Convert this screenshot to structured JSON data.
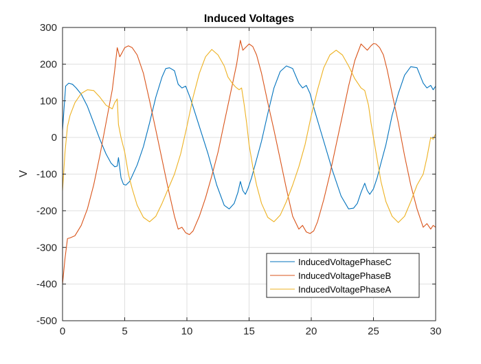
{
  "chart_data": {
    "type": "line",
    "title": "Induced Voltages",
    "xlabel": "",
    "ylabel": "V",
    "xlim": [
      0,
      30
    ],
    "ylim": [
      -500,
      300
    ],
    "xticks": [
      0,
      5,
      10,
      15,
      20,
      25,
      30
    ],
    "yticks": [
      -500,
      -400,
      -300,
      -200,
      -100,
      0,
      100,
      200,
      300
    ],
    "xtick_labels": [
      "0",
      "5",
      "10",
      "15",
      "20",
      "25",
      "30"
    ],
    "ytick_labels": [
      "-500",
      "-400",
      "-300",
      "-200",
      "-100",
      "0",
      "100",
      "200",
      "300"
    ],
    "grid": true,
    "legend_position": "bottom-right",
    "series": [
      {
        "name": "InducedVoltagePhaseC",
        "color": "#0072bd",
        "x": [
          0,
          0.25,
          0.5,
          0.8,
          1.1,
          1.5,
          2,
          2.5,
          3,
          3.5,
          3.9,
          4.2,
          4.4,
          4.5,
          4.7,
          4.9,
          5.1,
          5.4,
          6,
          6.5,
          7,
          7.5,
          8,
          8.3,
          8.6,
          9,
          9.3,
          9.6,
          9.9,
          10.3,
          11,
          11.7,
          12.4,
          13,
          13.4,
          13.8,
          14.1,
          14.3,
          14.5,
          14.7,
          14.9,
          15.2,
          15.6,
          16,
          16.5,
          17,
          17.5,
          18,
          18.5,
          19,
          19.3,
          19.6,
          19.9,
          20.3,
          21,
          21.7,
          22.4,
          23,
          23.4,
          23.7,
          24,
          24.3,
          24.5,
          24.7,
          25,
          25.3,
          25.6,
          26,
          26.5,
          27,
          27.5,
          28,
          28.5,
          29,
          29.3,
          29.6,
          29.8,
          30
        ],
        "values": [
          20,
          140,
          148,
          145,
          135,
          118,
          85,
          40,
          -5,
          -45,
          -70,
          -80,
          -78,
          -55,
          -110,
          -128,
          -130,
          -120,
          -75,
          -25,
          40,
          110,
          165,
          188,
          190,
          182,
          145,
          135,
          140,
          105,
          30,
          -45,
          -130,
          -185,
          -195,
          -180,
          -150,
          -120,
          -145,
          -155,
          -140,
          -110,
          -60,
          -10,
          65,
          135,
          180,
          195,
          188,
          148,
          135,
          142,
          120,
          70,
          -10,
          -90,
          -160,
          -195,
          -193,
          -180,
          -150,
          -125,
          -145,
          -155,
          -140,
          -110,
          -70,
          -20,
          60,
          120,
          170,
          193,
          190,
          148,
          135,
          142,
          130,
          140
        ]
      },
      {
        "name": "InducedVoltagePhaseB",
        "color": "#d95319",
        "x": [
          0,
          0.2,
          0.4,
          0.6,
          1,
          1.5,
          2,
          2.5,
          3,
          3.5,
          4,
          4.2,
          4.4,
          4.6,
          4.8,
          5,
          5.3,
          5.6,
          6,
          6.5,
          7,
          7.5,
          8,
          8.5,
          9,
          9.3,
          9.6,
          9.9,
          10.2,
          10.5,
          11,
          11.5,
          12,
          12.5,
          13,
          13.5,
          14,
          14.3,
          14.5,
          14.7,
          15,
          15.3,
          15.6,
          16,
          16.5,
          17,
          17.5,
          18,
          18.5,
          19,
          19.3,
          19.6,
          19.9,
          20.2,
          20.5,
          21,
          21.5,
          22,
          22.5,
          23,
          23.5,
          24,
          24.5,
          24.8,
          25,
          25.2,
          25.5,
          25.8,
          26.1,
          26.5,
          27,
          27.5,
          28,
          28.5,
          29,
          29.3,
          29.6,
          29.8,
          30
        ],
        "values": [
          -400,
          -330,
          -276,
          -274,
          -268,
          -240,
          -195,
          -130,
          -50,
          40,
          130,
          185,
          245,
          220,
          232,
          245,
          250,
          245,
          225,
          175,
          100,
          20,
          -60,
          -140,
          -215,
          -250,
          -245,
          -260,
          -265,
          -255,
          -215,
          -165,
          -105,
          -40,
          40,
          120,
          200,
          265,
          238,
          245,
          255,
          248,
          225,
          175,
          95,
          20,
          -60,
          -140,
          -215,
          -250,
          -240,
          -258,
          -262,
          -255,
          -230,
          -170,
          -100,
          -20,
          60,
          140,
          210,
          255,
          238,
          250,
          256,
          255,
          245,
          225,
          185,
          120,
          40,
          -50,
          -130,
          -195,
          -245,
          -235,
          -250,
          -240,
          -245
        ]
      },
      {
        "name": "InducedVoltagePhaseA",
        "color": "#edb120",
        "x": [
          0,
          0.2,
          0.4,
          0.6,
          1,
          1.5,
          2,
          2.5,
          3,
          3.5,
          4,
          4.2,
          4.4,
          4.5,
          4.7,
          5,
          5.3,
          5.6,
          6,
          6.5,
          7,
          7.5,
          8,
          8.5,
          9,
          9.5,
          10,
          10.5,
          11,
          11.5,
          12,
          12.5,
          13,
          13.3,
          13.6,
          13.9,
          14.2,
          14.4,
          14.6,
          14.8,
          15,
          15.3,
          15.6,
          16,
          16.5,
          17,
          17.5,
          18,
          18.5,
          19,
          19.5,
          20,
          20.5,
          21,
          21.5,
          22,
          22.5,
          23,
          23.5,
          24,
          24.3,
          24.6,
          24.8,
          25,
          25.3,
          25.6,
          26,
          26.5,
          27,
          27.5,
          28,
          28.5,
          29,
          29.3,
          29.6,
          29.8,
          30
        ],
        "values": [
          -145,
          -40,
          30,
          60,
          95,
          120,
          130,
          128,
          110,
          88,
          78,
          95,
          105,
          35,
          0,
          -40,
          -100,
          -140,
          -185,
          -218,
          -230,
          -215,
          -180,
          -140,
          -100,
          -45,
          30,
          110,
          175,
          220,
          240,
          225,
          195,
          165,
          150,
          138,
          130,
          135,
          90,
          40,
          -20,
          -80,
          -130,
          -180,
          -218,
          -230,
          -212,
          -175,
          -130,
          -80,
          -20,
          60,
          130,
          190,
          225,
          238,
          225,
          195,
          160,
          135,
          128,
          88,
          40,
          0,
          -60,
          -120,
          -175,
          -215,
          -232,
          -215,
          -175,
          -130,
          -100,
          -55,
          0,
          -5,
          10
        ]
      }
    ]
  }
}
